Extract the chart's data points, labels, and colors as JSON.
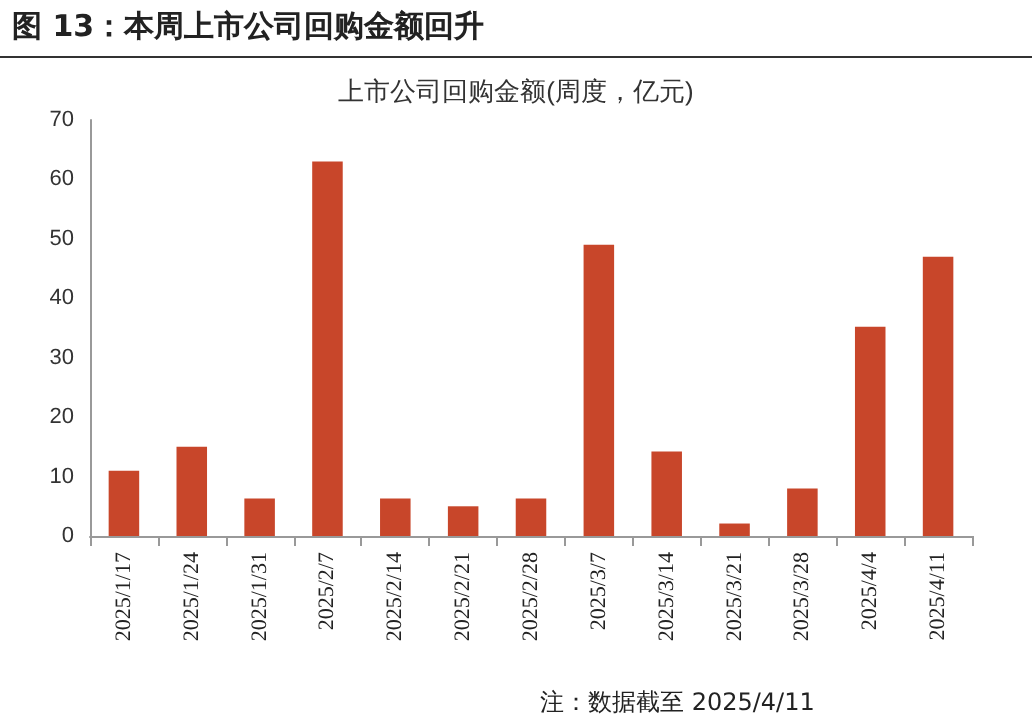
{
  "chart_data": {
    "type": "bar",
    "title": "图 13：本周上市公司回购金额回升",
    "subtitle": "上市公司回购金额(周度，亿元)",
    "categories": [
      "2025/1/17",
      "2025/1/24",
      "2025/1/31",
      "2025/2/7",
      "2025/2/14",
      "2025/2/21",
      "2025/2/28",
      "2025/3/7",
      "2025/3/14",
      "2025/3/21",
      "2025/3/28",
      "2025/4/4",
      "2025/4/11"
    ],
    "values": [
      11,
      15,
      6.3,
      63,
      6.3,
      5,
      6.3,
      49,
      14.2,
      2.1,
      8,
      35.2,
      47
    ],
    "color": "#c8462a",
    "ylim": [
      0,
      70
    ],
    "yticks": [
      0,
      10,
      20,
      30,
      40,
      50,
      60,
      70
    ],
    "grid": false,
    "annotations": [
      "注：数据截至 2025/4/11"
    ]
  }
}
